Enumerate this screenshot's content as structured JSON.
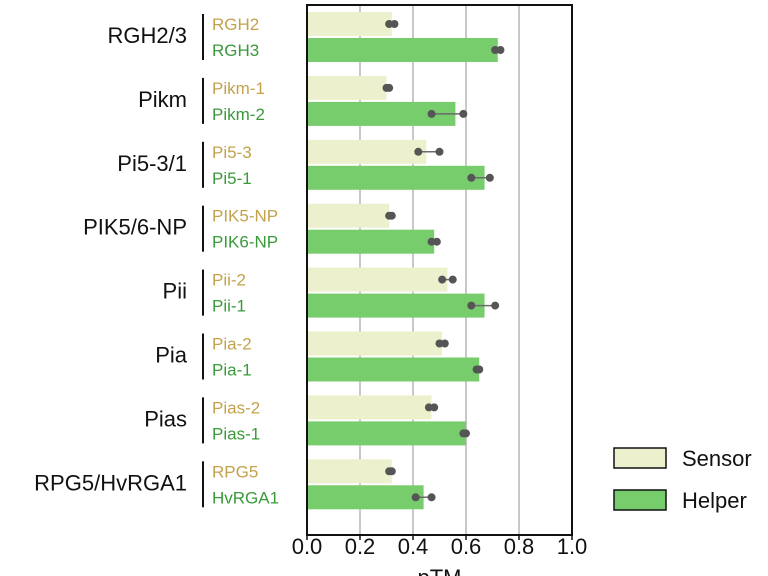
{
  "chart_data": {
    "type": "bar",
    "orientation": "horizontal",
    "xlabel": "pTM",
    "xlim": [
      0,
      1.0
    ],
    "xticks": [
      "0.0",
      "0.2",
      "0.4",
      "0.6",
      "0.8",
      "1.0"
    ],
    "grid": "x",
    "legend": {
      "placement": "bottom-right",
      "entries": [
        "Sensor",
        "Helper"
      ]
    },
    "colors": {
      "Sensor": "#ecf0cc",
      "Helper": "#77cc6c",
      "sensor_text": "#c4a24c",
      "helper_text": "#3a9a3a",
      "point": "#555555"
    },
    "groups": [
      {
        "name": "RGH2/3",
        "sensor": {
          "label": "RGH2",
          "value": 0.32,
          "points": [
            0.31,
            0.33
          ]
        },
        "helper": {
          "label": "RGH3",
          "value": 0.72,
          "points": [
            0.71,
            0.73
          ]
        }
      },
      {
        "name": "Pikm",
        "sensor": {
          "label": "Pikm-1",
          "value": 0.3,
          "points": [
            0.3,
            0.31
          ]
        },
        "helper": {
          "label": "Pikm-2",
          "value": 0.56,
          "points": [
            0.47,
            0.59
          ]
        }
      },
      {
        "name": "Pi5-3/1",
        "sensor": {
          "label": "Pi5-3",
          "value": 0.45,
          "points": [
            0.42,
            0.5
          ]
        },
        "helper": {
          "label": "Pi5-1",
          "value": 0.67,
          "points": [
            0.62,
            0.69
          ]
        }
      },
      {
        "name": "PIK5/6-NP",
        "sensor": {
          "label": "PIK5-NP",
          "value": 0.31,
          "points": [
            0.31,
            0.32
          ]
        },
        "helper": {
          "label": "PIK6-NP",
          "value": 0.48,
          "points": [
            0.47,
            0.49
          ]
        }
      },
      {
        "name": "Pii",
        "sensor": {
          "label": "Pii-2",
          "value": 0.53,
          "points": [
            0.51,
            0.55
          ]
        },
        "helper": {
          "label": "Pii-1",
          "value": 0.67,
          "points": [
            0.62,
            0.71
          ]
        }
      },
      {
        "name": "Pia",
        "sensor": {
          "label": "Pia-2",
          "value": 0.51,
          "points": [
            0.5,
            0.52
          ]
        },
        "helper": {
          "label": "Pia-1",
          "value": 0.65,
          "points": [
            0.64,
            0.65
          ]
        }
      },
      {
        "name": "Pias",
        "sensor": {
          "label": "Pias-2",
          "value": 0.47,
          "points": [
            0.46,
            0.48
          ]
        },
        "helper": {
          "label": "Pias-1",
          "value": 0.6,
          "points": [
            0.59,
            0.6
          ]
        }
      },
      {
        "name": "RPG5/HvRGA1",
        "sensor": {
          "label": "RPG5",
          "value": 0.32,
          "points": [
            0.31,
            0.32
          ]
        },
        "helper": {
          "label": "HvRGA1",
          "value": 0.44,
          "points": [
            0.41,
            0.47
          ]
        }
      }
    ]
  }
}
